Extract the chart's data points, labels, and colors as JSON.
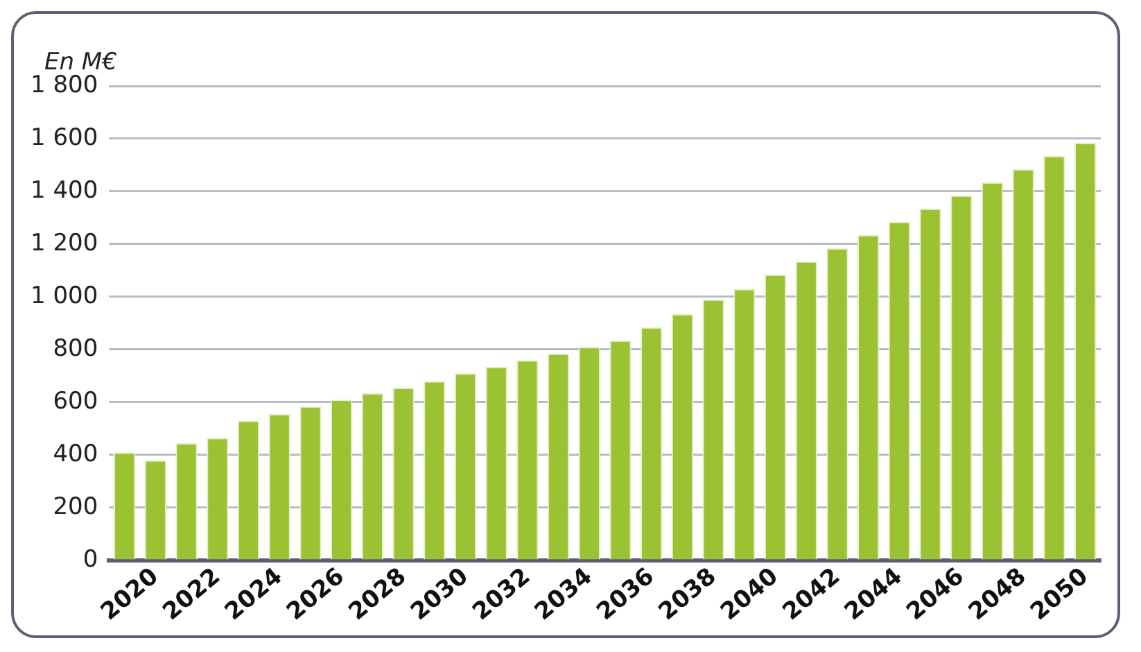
{
  "chart_data": {
    "type": "bar",
    "ylabel": "En M€",
    "categories": [
      null,
      "2020",
      null,
      "2022",
      null,
      "2024",
      null,
      "2026",
      null,
      "2028",
      null,
      "2030",
      null,
      "2032",
      null,
      "2034",
      null,
      "2036",
      null,
      "2038",
      null,
      "2040",
      null,
      "2042",
      null,
      "2044",
      null,
      "2046",
      null,
      "2048",
      null,
      "2050"
    ],
    "values": [
      410,
      380,
      445,
      465,
      530,
      555,
      585,
      610,
      635,
      655,
      680,
      710,
      735,
      760,
      785,
      810,
      835,
      885,
      935,
      990,
      1030,
      1085,
      1135,
      1185,
      1235,
      1285,
      1335,
      1385,
      1435,
      1485,
      1535,
      1585
    ],
    "color": "#9bc232",
    "ylim": [
      0,
      1800
    ],
    "yticks": [
      0,
      200,
      400,
      600,
      800,
      {
        "value": 1000,
        "label": "1 000"
      },
      {
        "value": 1200,
        "label": "1 200"
      },
      {
        "value": 1400,
        "label": "1 400"
      },
      {
        "value": 1600,
        "label": "1 600"
      },
      {
        "value": 1800,
        "label": "1 800"
      }
    ],
    "grid": "y",
    "legend": false
  }
}
